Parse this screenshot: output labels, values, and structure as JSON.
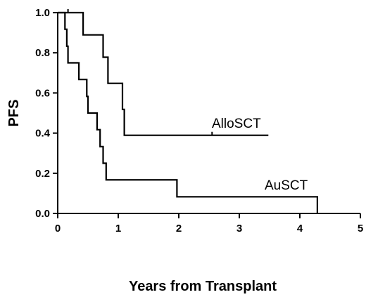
{
  "chart_data": {
    "type": "line",
    "subtype": "kaplan-meier step curve",
    "title": "",
    "xlabel": "Years from Transplant",
    "ylabel": "PFS",
    "xlim": [
      0,
      5
    ],
    "ylim": [
      0,
      1.0
    ],
    "x_ticks": [
      "0",
      "1",
      "2",
      "3",
      "4",
      "5"
    ],
    "y_ticks": [
      "0.0",
      "0.2",
      "0.4",
      "0.6",
      "0.8",
      "1.0"
    ],
    "grid": false,
    "legend": "none",
    "series": [
      {
        "name": "AlloSCT",
        "color": "#000000",
        "points": [
          [
            0,
            1.0
          ],
          [
            0.42,
            1.0
          ],
          [
            0.42,
            0.889
          ],
          [
            0.75,
            0.889
          ],
          [
            0.75,
            0.778
          ],
          [
            0.83,
            0.778
          ],
          [
            0.83,
            0.648
          ],
          [
            1.07,
            0.648
          ],
          [
            1.07,
            0.518
          ],
          [
            1.1,
            0.518
          ],
          [
            1.1,
            0.389
          ],
          [
            3.48,
            0.389
          ]
        ],
        "censor_marks": [
          [
            0.17,
            1.0
          ],
          [
            2.55,
            0.389
          ]
        ]
      },
      {
        "name": "AuSCT",
        "color": "#000000",
        "points": [
          [
            0,
            1.0
          ],
          [
            0.12,
            1.0
          ],
          [
            0.12,
            0.917
          ],
          [
            0.15,
            0.917
          ],
          [
            0.15,
            0.833
          ],
          [
            0.17,
            0.833
          ],
          [
            0.17,
            0.75
          ],
          [
            0.35,
            0.75
          ],
          [
            0.35,
            0.667
          ],
          [
            0.48,
            0.667
          ],
          [
            0.48,
            0.583
          ],
          [
            0.5,
            0.583
          ],
          [
            0.5,
            0.5
          ],
          [
            0.65,
            0.5
          ],
          [
            0.65,
            0.417
          ],
          [
            0.7,
            0.417
          ],
          [
            0.7,
            0.333
          ],
          [
            0.75,
            0.333
          ],
          [
            0.75,
            0.25
          ],
          [
            0.8,
            0.25
          ],
          [
            0.8,
            0.167
          ],
          [
            1.97,
            0.167
          ],
          [
            1.97,
            0.083
          ],
          [
            4.29,
            0.083
          ],
          [
            4.29,
            0.0
          ]
        ]
      }
    ]
  }
}
